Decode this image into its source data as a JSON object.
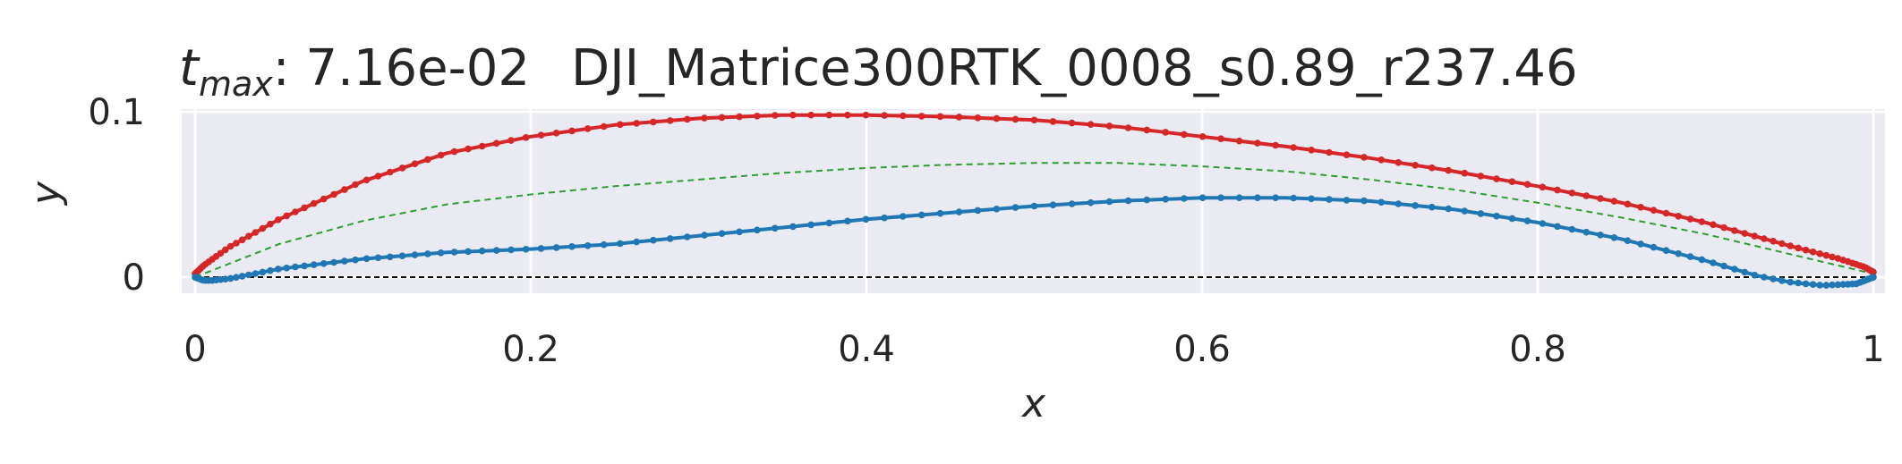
{
  "chart_data": {
    "type": "line",
    "title_prefix": {
      "symbol": "t",
      "subscript": "max",
      "suffix": ": 7.16e-02"
    },
    "title": "DJI_Matrice300RTK_0008_s0.89_r237.46",
    "xlabel": "x",
    "ylabel": "y",
    "xlim": [
      0,
      1
    ],
    "ylim": [
      -0.01,
      0.1
    ],
    "x_ticks": [
      {
        "value": 0,
        "label": "0"
      },
      {
        "value": 0.2,
        "label": "0.2"
      },
      {
        "value": 0.4,
        "label": "0.4"
      },
      {
        "value": 0.6,
        "label": "0.6"
      },
      {
        "value": 0.8,
        "label": "0.8"
      },
      {
        "value": 1,
        "label": "1"
      }
    ],
    "y_ticks": [
      {
        "value": 0,
        "label": "0"
      },
      {
        "value": 0.1,
        "label": "0.1"
      }
    ],
    "grid": true,
    "legend": "none",
    "series": [
      {
        "role": "upper-surface",
        "color": "#d62728",
        "marker": "dot",
        "x": [
          0,
          0.005,
          0.02,
          0.05,
          0.1,
          0.15,
          0.2,
          0.25,
          0.3,
          0.35,
          0.4,
          0.45,
          0.5,
          0.55,
          0.6,
          0.65,
          0.7,
          0.75,
          0.8,
          0.85,
          0.9,
          0.95,
          0.98,
          0.995,
          1
        ],
        "y": [
          0.002,
          0.007,
          0.018,
          0.035,
          0.058,
          0.075,
          0.085,
          0.092,
          0.096,
          0.098,
          0.098,
          0.097,
          0.095,
          0.091,
          0.085,
          0.079,
          0.072,
          0.064,
          0.055,
          0.045,
          0.033,
          0.019,
          0.011,
          0.006,
          0.003
        ]
      },
      {
        "role": "lower-surface",
        "color": "#1f77b4",
        "marker": "dot",
        "x": [
          0,
          0.005,
          0.01,
          0.02,
          0.03,
          0.05,
          0.1,
          0.15,
          0.2,
          0.25,
          0.3,
          0.35,
          0.4,
          0.45,
          0.5,
          0.55,
          0.6,
          0.65,
          0.7,
          0.75,
          0.8,
          0.85,
          0.9,
          0.93,
          0.95,
          0.97,
          0.99,
          1
        ],
        "y": [
          0,
          -0.002,
          -0.002,
          -0.001,
          0.001,
          0.005,
          0.011,
          0.015,
          0.017,
          0.02,
          0.025,
          0.03,
          0.035,
          0.039,
          0.043,
          0.046,
          0.048,
          0.048,
          0.046,
          0.041,
          0.033,
          0.023,
          0.01,
          0.001,
          -0.003,
          -0.005,
          -0.004,
          0
        ]
      },
      {
        "role": "camber-line",
        "color": "#2ca02c",
        "style": "dashed",
        "x": [
          0,
          0.05,
          0.1,
          0.15,
          0.2,
          0.25,
          0.3,
          0.35,
          0.4,
          0.45,
          0.5,
          0.55,
          0.6,
          0.65,
          0.7,
          0.75,
          0.8,
          0.85,
          0.9,
          0.95,
          1
        ],
        "y": [
          0,
          0.02,
          0.034,
          0.044,
          0.05,
          0.055,
          0.059,
          0.063,
          0.066,
          0.068,
          0.069,
          0.069,
          0.067,
          0.064,
          0.059,
          0.053,
          0.045,
          0.036,
          0.026,
          0.014,
          0.002
        ]
      },
      {
        "role": "chord-line",
        "color": "#000000",
        "style": "dashed",
        "x": [
          0,
          1
        ],
        "y": [
          0,
          0
        ]
      }
    ]
  }
}
